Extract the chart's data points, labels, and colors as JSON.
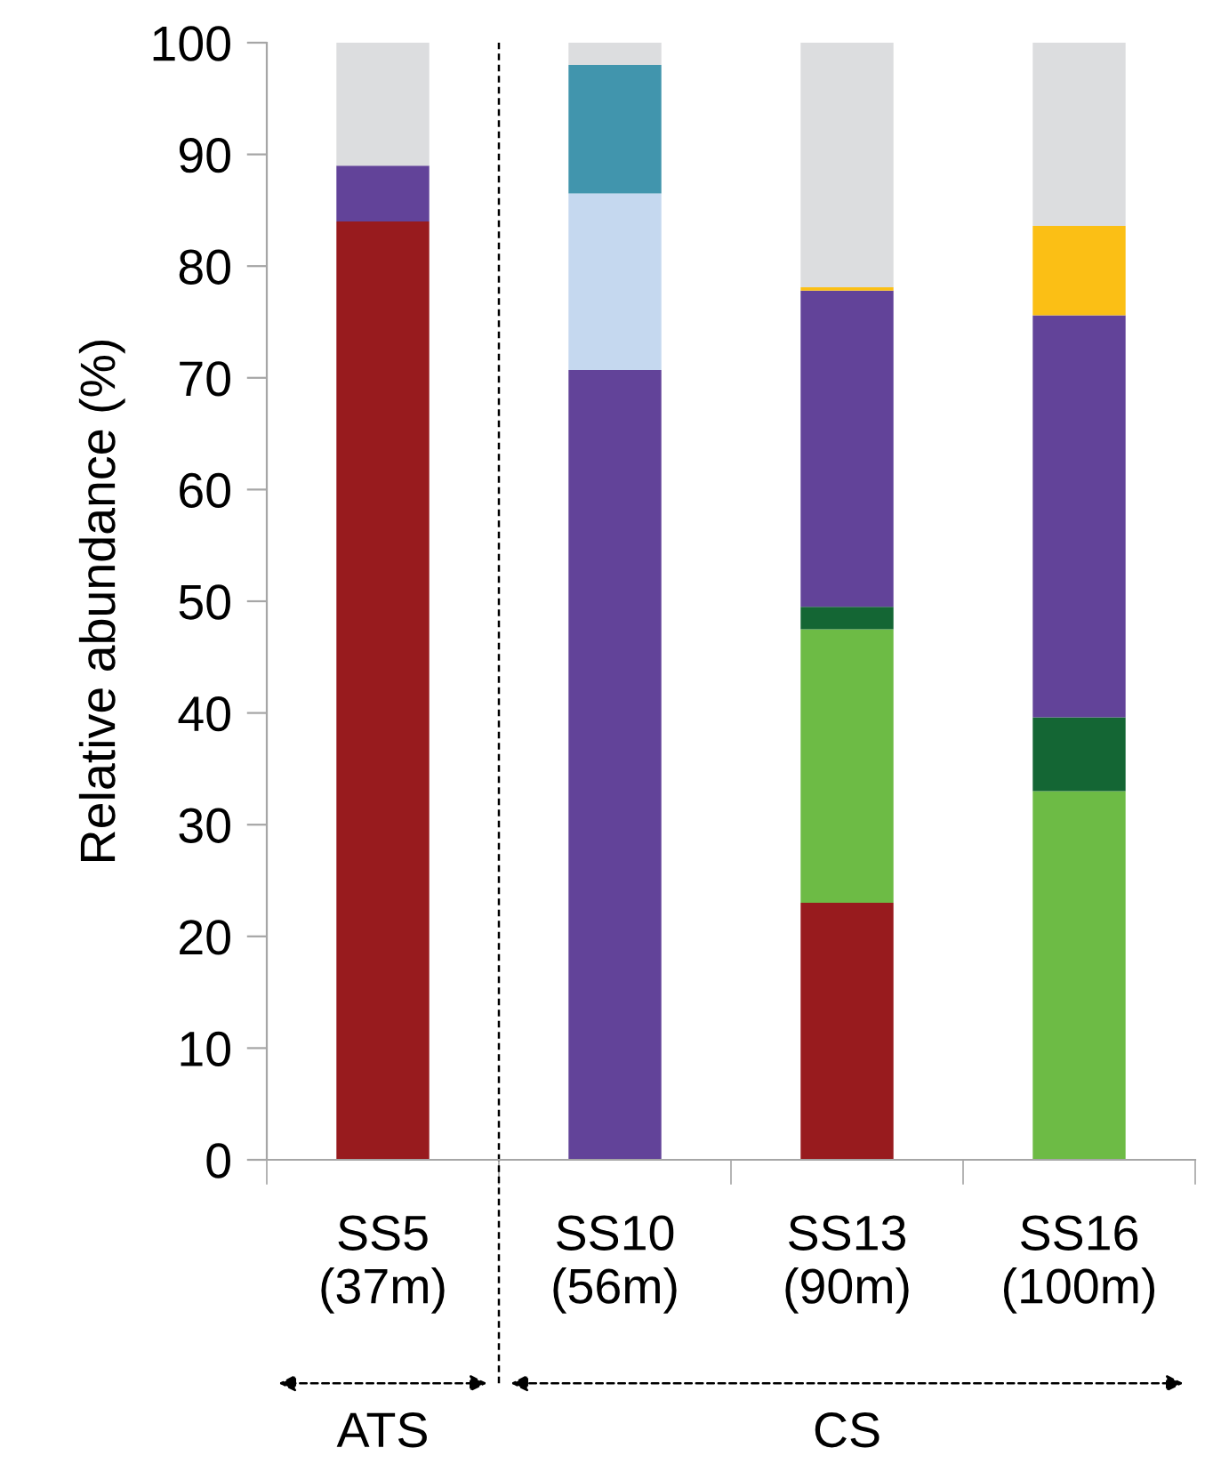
{
  "chart_data": {
    "type": "bar",
    "stacked": true,
    "ylabel": "Relative abundance (%)",
    "categories": [
      "SS5\n(37m)",
      "SS10\n(56m)",
      "SS13\n(90m)",
      "SS16\n(100m)"
    ],
    "series": [
      {
        "color": "#981b1e",
        "values": [
          84,
          0,
          23,
          0
        ]
      },
      {
        "color": "#6dbb45",
        "values": [
          0,
          0,
          24.5,
          33
        ]
      },
      {
        "color": "#146634",
        "values": [
          0,
          0,
          2,
          6.6
        ]
      },
      {
        "color": "#624399",
        "values": [
          5,
          70.7,
          28.3,
          36
        ]
      },
      {
        "color": "#c5d8ef",
        "values": [
          0,
          15.8,
          0,
          0
        ]
      },
      {
        "color": "#4195ad",
        "values": [
          0,
          11.5,
          0,
          0
        ]
      },
      {
        "color": "#fbbf15",
        "values": [
          0,
          0,
          0.3,
          8
        ]
      },
      {
        "color": "#dcdddf",
        "values": [
          11,
          2,
          21.9,
          16.4
        ]
      }
    ],
    "ylim": [
      0,
      100
    ],
    "yticks": [
      0,
      10,
      20,
      30,
      40,
      50,
      60,
      70,
      80,
      90,
      100
    ],
    "annotations": [
      "ATS",
      "CS"
    ],
    "grid": false,
    "legend": false
  }
}
